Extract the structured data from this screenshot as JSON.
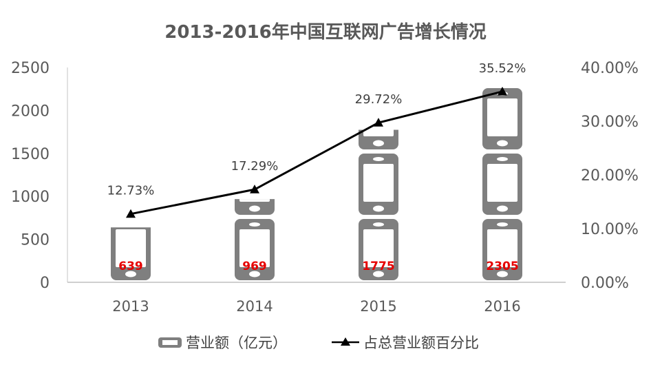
{
  "colors": {
    "bar": "#7f7f7f",
    "line": "#000000",
    "value_label": "#e60000",
    "axis": "#595959"
  },
  "chart_data": {
    "type": "bar+line",
    "title": "2013-2016年中国互联网广告增长情况",
    "categories": [
      "2013",
      "2014",
      "2015",
      "2016"
    ],
    "series": [
      {
        "name": "营业额（亿元）",
        "type": "bar",
        "axis": "left",
        "values": [
          639,
          969,
          1775,
          2305
        ],
        "labels": [
          "639",
          "969",
          "1775",
          "2305"
        ]
      },
      {
        "name": "占总营业额百分比",
        "type": "line",
        "axis": "right",
        "values": [
          12.73,
          17.29,
          29.72,
          35.52
        ],
        "labels": [
          "12.73%",
          "17.29%",
          "29.72%",
          "35.52%"
        ]
      }
    ],
    "y_left": {
      "min": 0,
      "max": 2500,
      "ticks": [
        0,
        500,
        1000,
        1500,
        2000,
        2500
      ],
      "tick_labels": [
        "0",
        "500",
        "1000",
        "1500",
        "2000",
        "2500"
      ]
    },
    "y_right": {
      "min": 0,
      "max": 40,
      "ticks": [
        0,
        10,
        20,
        30,
        40
      ],
      "tick_labels": [
        "0.00%",
        "10.00%",
        "20.00%",
        "30.00%",
        "40.00%"
      ]
    },
    "bar_icon": "phone-icon",
    "legend_position": "bottom",
    "grid": false
  }
}
